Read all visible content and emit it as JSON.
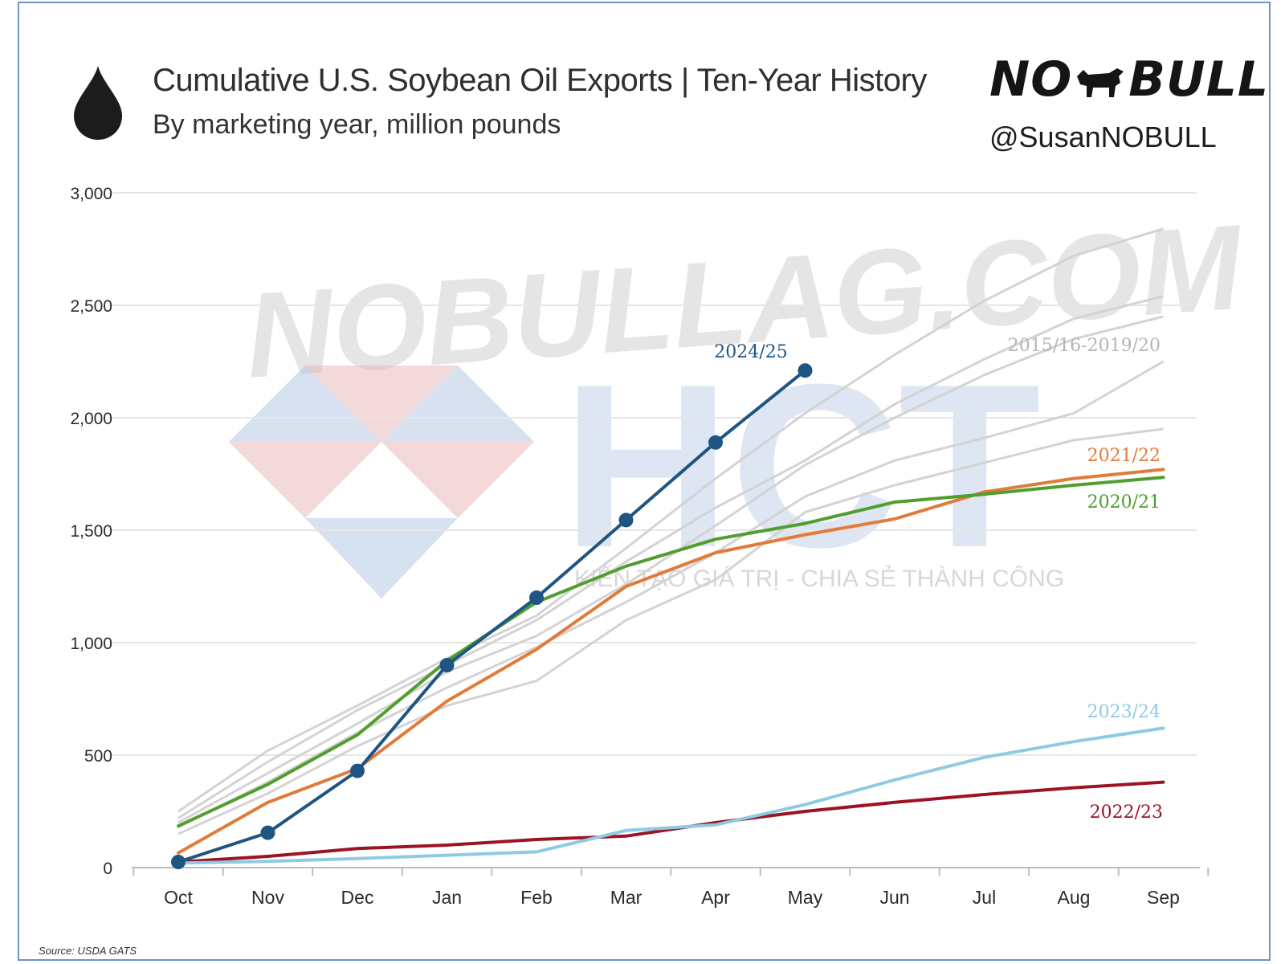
{
  "header": {
    "title": "Cumulative U.S. Soybean Oil Exports | Ten-Year History",
    "subtitle": "By marketing year, million pounds",
    "logo_text_left": "NO",
    "logo_text_right": "BULL",
    "handle": "@SusanNOBULL"
  },
  "watermark": {
    "site": "NOBULLAG.COM",
    "brand": "HCT",
    "tagline": "KIẾN TẠO GIÁ TRỊ - CHIA SẺ THÀNH CÔNG"
  },
  "footer": {
    "source": "Source: USDA GATS"
  },
  "colors": {
    "background": "#ffffff",
    "grid": "#e6e6e6",
    "history": "#d3d3d3",
    "s2024_25": "#1f5582",
    "s2023_24": "#8ecbe3",
    "s2022_23": "#9c1424",
    "s2021_22": "#e07b39",
    "s2020_21": "#4f9e2e"
  },
  "chart_data": {
    "type": "line",
    "title": "Cumulative U.S. Soybean Oil Exports | Ten-Year History",
    "subtitle": "By marketing year, million pounds",
    "categories": [
      "Oct",
      "Nov",
      "Dec",
      "Jan",
      "Feb",
      "Mar",
      "Apr",
      "May",
      "Jun",
      "Jul",
      "Aug",
      "Sep"
    ],
    "ylim": [
      0,
      3000
    ],
    "yticks": [
      0,
      500,
      1000,
      1500,
      2000,
      2500,
      3000
    ],
    "ytick_labels": [
      "0",
      "500",
      "1,000",
      "1,500",
      "2,000",
      "2,500",
      "3,000"
    ],
    "grid": true,
    "history_label": "2015/16-2019/20",
    "history_series": [
      {
        "values": [
          250,
          520,
          720,
          930,
          1120,
          1420,
          1730,
          2020,
          2280,
          2520,
          2720,
          2840
        ]
      },
      {
        "values": [
          220,
          470,
          700,
          900,
          1100,
          1360,
          1600,
          1810,
          2060,
          2260,
          2440,
          2540
        ]
      },
      {
        "values": [
          200,
          420,
          640,
          870,
          1030,
          1260,
          1520,
          1790,
          2000,
          2190,
          2350,
          2450
        ]
      },
      {
        "values": [
          180,
          380,
          600,
          800,
          980,
          1180,
          1400,
          1650,
          1810,
          1910,
          2020,
          2250
        ]
      },
      {
        "values": [
          150,
          330,
          540,
          720,
          830,
          1100,
          1280,
          1580,
          1700,
          1800,
          1900,
          1950
        ]
      }
    ],
    "series": [
      {
        "name": "2024/25",
        "key": "s2024_25",
        "markers": true,
        "values": [
          25,
          155,
          430,
          900,
          1200,
          1545,
          1890,
          2210,
          null,
          null,
          null,
          null
        ]
      },
      {
        "name": "2023/24",
        "key": "s2023_24",
        "markers": false,
        "values": [
          20,
          28,
          40,
          55,
          70,
          165,
          190,
          280,
          390,
          490,
          560,
          620
        ]
      },
      {
        "name": "2022/23",
        "key": "s2022_23",
        "markers": false,
        "values": [
          25,
          50,
          85,
          100,
          125,
          140,
          200,
          250,
          290,
          325,
          355,
          380
        ]
      },
      {
        "name": "2021/22",
        "key": "s2021_22",
        "markers": false,
        "values": [
          65,
          290,
          440,
          740,
          970,
          1250,
          1400,
          1480,
          1550,
          1670,
          1730,
          1770
        ]
      },
      {
        "name": "2020/21",
        "key": "s2020_21",
        "markers": false,
        "values": [
          185,
          370,
          590,
          920,
          1180,
          1340,
          1460,
          1530,
          1625,
          1660,
          1700,
          1735
        ]
      }
    ]
  }
}
